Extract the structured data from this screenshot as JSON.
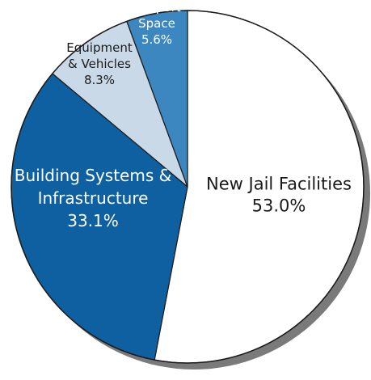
{
  "chart_data": {
    "type": "pie",
    "slices": [
      {
        "label_lines": [
          "New Jail Facilities"
        ],
        "value_text": "53.0%",
        "value": 53.0,
        "color": "#ffffff",
        "text_color": "#1a1a1a"
      },
      {
        "label_lines": [
          "Building Systems &",
          "Infrastructure"
        ],
        "value_text": "33.1%",
        "value": 33.1,
        "color": "#0f60a0",
        "text_color": "#ffffff"
      },
      {
        "label_lines": [
          "Equipment",
          "& Vehicles"
        ],
        "value_text": "8.3%",
        "value": 8.3,
        "color": "#c9d9e8",
        "text_color": "#1a1a1a"
      },
      {
        "label_lines": [
          "Support",
          "Space"
        ],
        "value_text": "5.6%",
        "value": 5.6,
        "color": "#3c87bf",
        "text_color": "#ffffff"
      }
    ],
    "start_angle": "top (12 o'clock)",
    "direction": "clockwise",
    "outline_color": "#1a1a1a",
    "shadow_color": "#7a7a7a"
  }
}
